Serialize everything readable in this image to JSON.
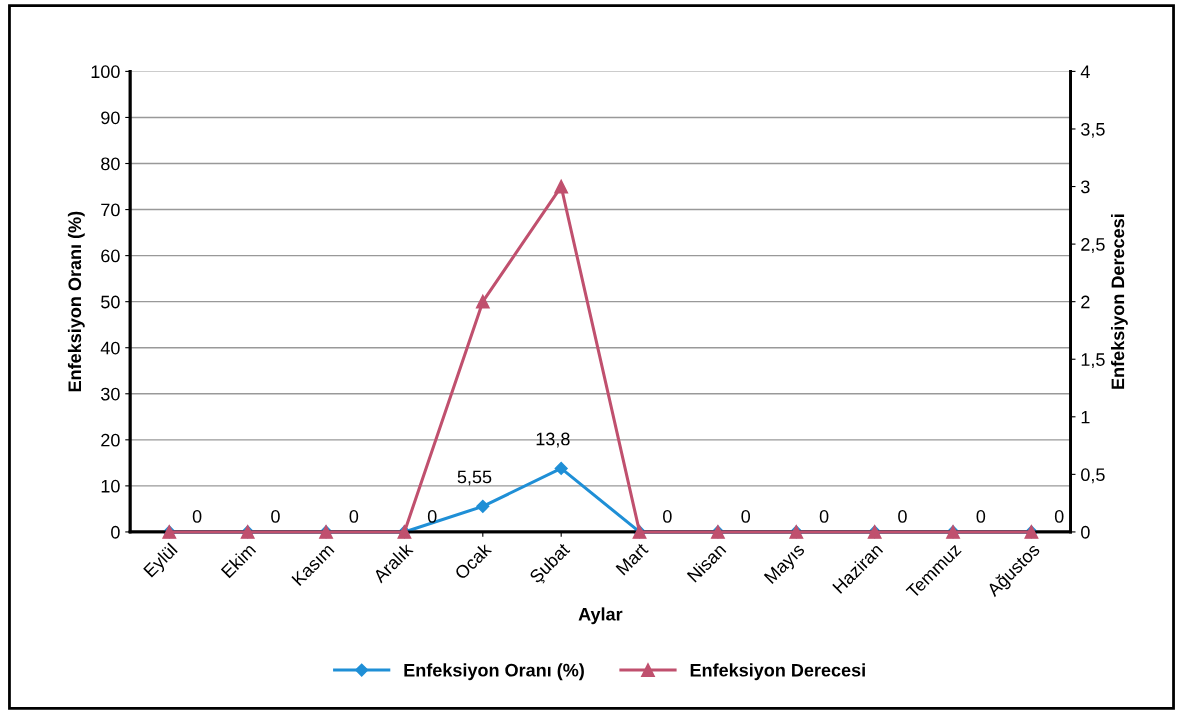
{
  "chart_data": {
    "type": "line",
    "xlabel": "Aylar",
    "ylabel": "Enfeksiyon Oranı (%)",
    "y2label": "Enfeksiyon Derecesi",
    "categories": [
      "Eylül",
      "Ekim",
      "Kasım",
      "Aralık",
      "Ocak",
      "Şubat",
      "Mart",
      "Nisan",
      "Mayıs",
      "Haziran",
      "Temmuz",
      "Ağustos"
    ],
    "series": [
      {
        "name": "Enfeksiyon Oranı (%)",
        "color": "#1f8fd6",
        "marker": "diamond",
        "values": [
          0,
          0,
          0,
          0,
          5.55,
          13.8,
          0,
          0,
          0,
          0,
          0,
          0
        ],
        "value_labels": [
          "0",
          "0",
          "0",
          "0",
          "5,55",
          "13,8",
          "0",
          "0",
          "0",
          "0",
          "0",
          "0"
        ]
      },
      {
        "name": "Enfeksiyon Derecesi",
        "color": "#c0506e",
        "marker": "triangle",
        "axis": "y2",
        "values": [
          0,
          0,
          0,
          0,
          2,
          3,
          0,
          0,
          0,
          0,
          0,
          0
        ]
      }
    ],
    "ylim": [
      0,
      100
    ],
    "yticks": [
      0,
      10,
      20,
      30,
      40,
      50,
      60,
      70,
      80,
      90,
      100
    ],
    "y2lim": [
      0,
      4
    ],
    "y2ticks": [
      0,
      {
        "value": 0.5,
        "label": "0,5"
      },
      1,
      {
        "value": 1.5,
        "label": "1,5"
      },
      2,
      {
        "value": 2.5,
        "label": "2,5"
      },
      3,
      {
        "value": 3.5,
        "label": "3,5"
      },
      4
    ],
    "grid": "y",
    "legend": "bottom",
    "line_style": "solid"
  }
}
